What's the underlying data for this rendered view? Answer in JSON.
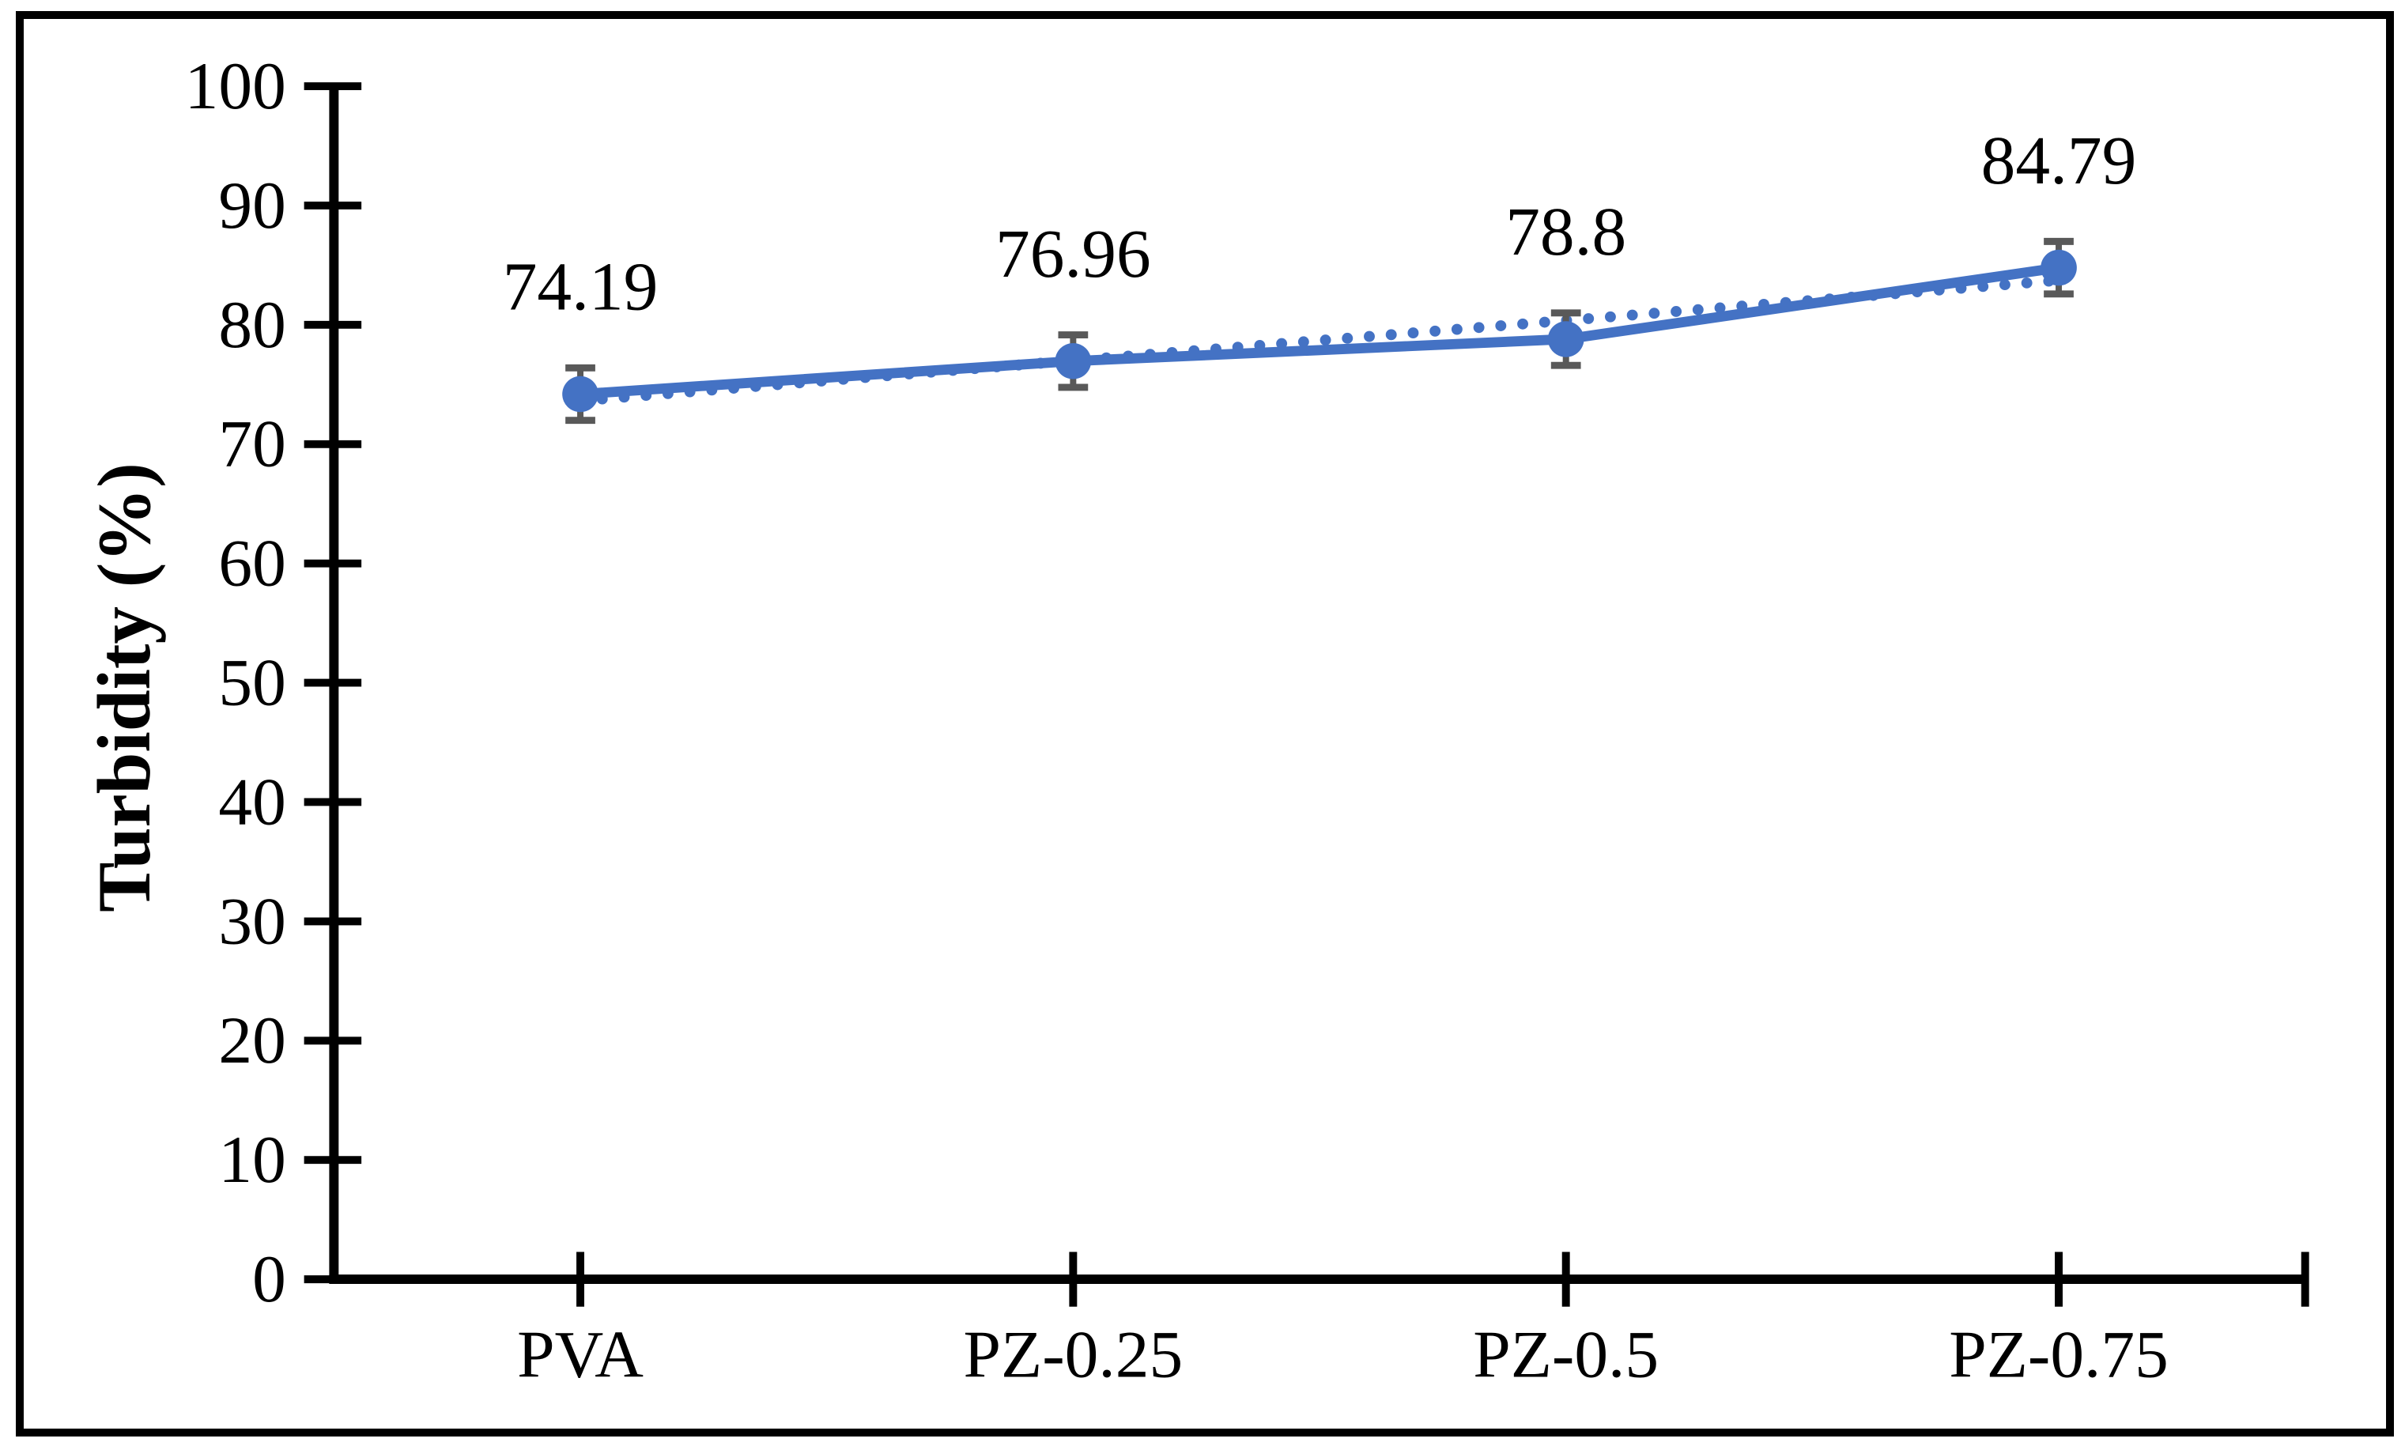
{
  "figure": {
    "background": "#ffffff",
    "border_color": "#000000"
  },
  "chart_data": {
    "type": "line",
    "title": "",
    "xlabel": "",
    "ylabel": "Turbidity (%)",
    "categories": [
      "PVA",
      "PZ-0.25",
      "PZ-0.5",
      "PZ-0.75"
    ],
    "series": [
      {
        "name": "Turbidity",
        "values": [
          74.19,
          76.96,
          78.8,
          84.79
        ],
        "labels": [
          "74.19",
          "76.96",
          "78.8",
          "84.79"
        ],
        "color": "#4472C4",
        "marker": "circle",
        "error_y": 2.2,
        "error_color": "#595959"
      }
    ],
    "trendline": {
      "style": "dotted",
      "color": "#4472C4",
      "endpoints": [
        73.64,
        83.73
      ]
    },
    "ylim": [
      0,
      100
    ],
    "ytick_step": 10,
    "yticks": [
      "0",
      "10",
      "20",
      "30",
      "40",
      "50",
      "60",
      "70",
      "80",
      "90",
      "100"
    ],
    "grid": false,
    "legend": false,
    "axis_color": "#000000",
    "text_color": "#000000"
  }
}
